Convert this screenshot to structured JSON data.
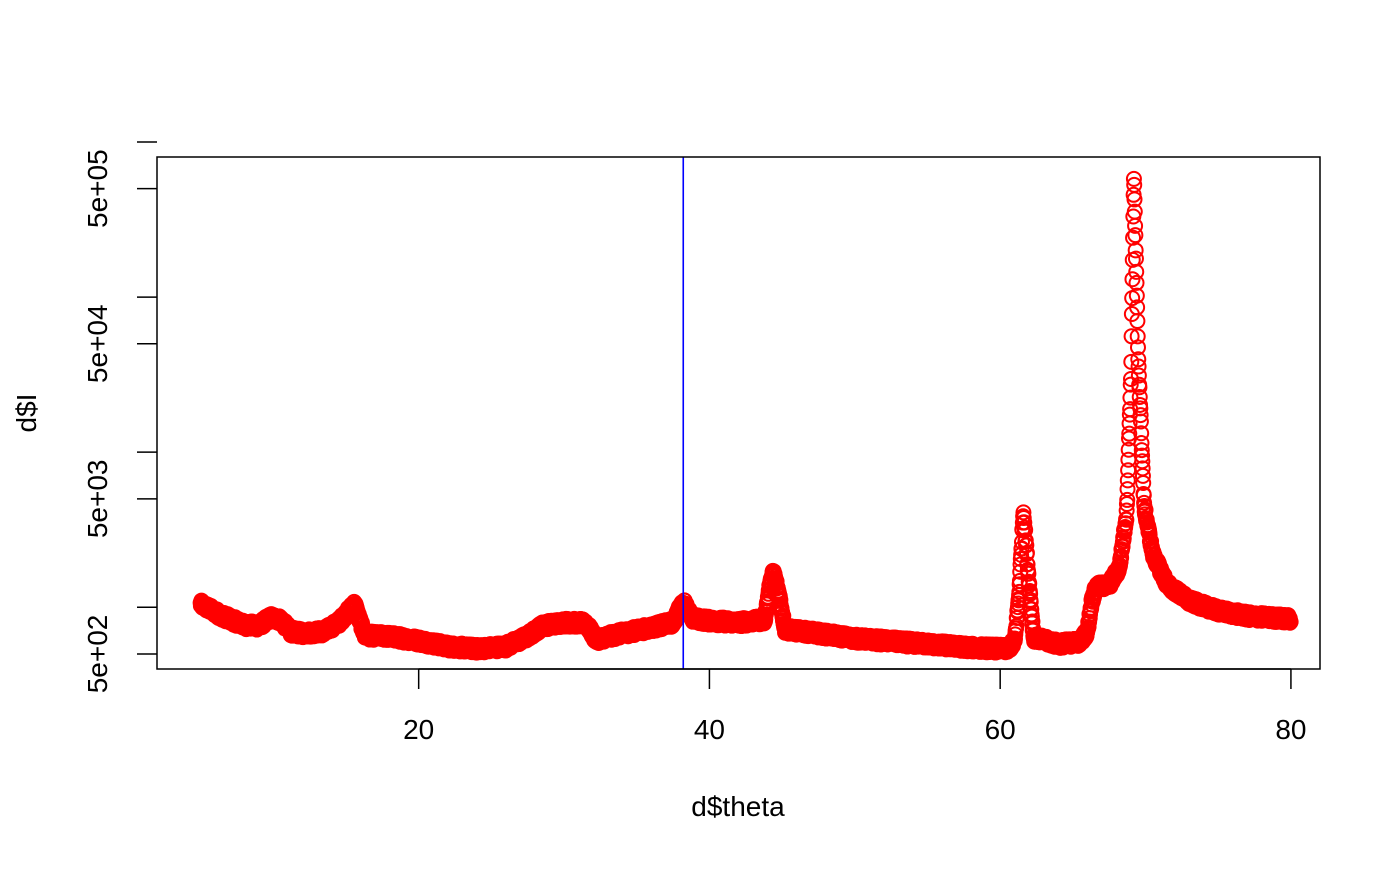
{
  "chart_data": {
    "type": "scatter",
    "title": "",
    "xlabel": "d$theta",
    "ylabel": "d$I",
    "x_scale": "linear",
    "y_scale": "log",
    "xlim": [
      2.0,
      82.0
    ],
    "ylim": [
      400,
      800000
    ],
    "x_ticks": [
      20,
      40,
      60,
      80
    ],
    "x_tick_labels": [
      "20",
      "40",
      "60",
      "80"
    ],
    "y_ticks": [
      500,
      1000,
      5000,
      10000,
      50000,
      100000,
      500000,
      1000000
    ],
    "y_tick_labels": [
      "5e+02",
      "",
      "5e+03",
      "",
      "5e+04",
      "",
      "5e+05",
      ""
    ],
    "grid": false,
    "legend": "none",
    "marker": "open-circle",
    "point_color": "#ff0000",
    "vline": {
      "x": 38.2,
      "color": "#0000ff"
    },
    "profile_anchors": [
      [
        5.0,
        1050
      ],
      [
        6.5,
        880
      ],
      [
        8.0,
        770
      ],
      [
        9.0,
        760
      ],
      [
        9.8,
        860
      ],
      [
        10.5,
        830
      ],
      [
        11.2,
        700
      ],
      [
        12.0,
        680
      ],
      [
        13.5,
        700
      ],
      [
        14.5,
        800
      ],
      [
        15.2,
        950
      ],
      [
        15.6,
        1050
      ],
      [
        15.9,
        850
      ],
      [
        16.3,
        660
      ],
      [
        18.0,
        650
      ],
      [
        20.0,
        610
      ],
      [
        22.0,
        560
      ],
      [
        24.0,
        540
      ],
      [
        26.0,
        560
      ],
      [
        27.5,
        650
      ],
      [
        28.5,
        760
      ],
      [
        30.0,
        800
      ],
      [
        31.5,
        790
      ],
      [
        32.2,
        620
      ],
      [
        34.0,
        680
      ],
      [
        36.0,
        740
      ],
      [
        37.5,
        800
      ],
      [
        38.0,
        1000
      ],
      [
        38.3,
        1060
      ],
      [
        38.8,
        850
      ],
      [
        40.0,
        820
      ],
      [
        42.0,
        800
      ],
      [
        43.8,
        830
      ],
      [
        44.1,
        1300
      ],
      [
        44.4,
        1700
      ],
      [
        44.8,
        1200
      ],
      [
        45.2,
        720
      ],
      [
        47.0,
        690
      ],
      [
        50.0,
        630
      ],
      [
        53.0,
        600
      ],
      [
        56.0,
        570
      ],
      [
        58.0,
        550
      ],
      [
        60.5,
        540
      ],
      [
        61.0,
        600
      ],
      [
        61.3,
        1200
      ],
      [
        61.6,
        4200
      ],
      [
        61.9,
        1800
      ],
      [
        62.3,
        640
      ],
      [
        64.0,
        580
      ],
      [
        65.5,
        600
      ],
      [
        66.0,
        700
      ],
      [
        66.3,
        1100
      ],
      [
        66.6,
        1350
      ],
      [
        67.5,
        1400
      ],
      [
        68.2,
        1800
      ],
      [
        68.7,
        4000
      ],
      [
        69.0,
        30000
      ],
      [
        69.2,
        600000
      ],
      [
        69.5,
        40000
      ],
      [
        69.9,
        4500
      ],
      [
        70.5,
        2200
      ],
      [
        71.5,
        1400
      ],
      [
        73.0,
        1100
      ],
      [
        75.0,
        950
      ],
      [
        77.0,
        880
      ],
      [
        80.0,
        840
      ]
    ]
  }
}
